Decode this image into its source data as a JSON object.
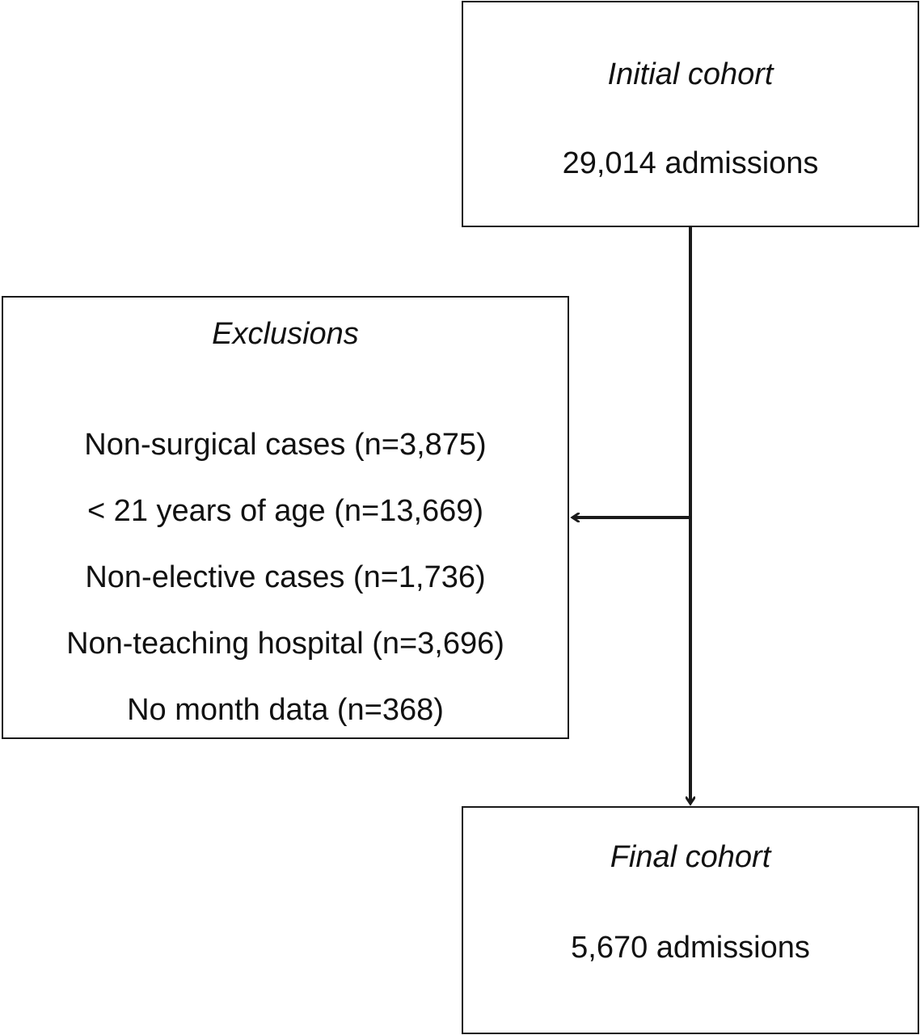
{
  "initial_cohort": {
    "title": "Initial cohort",
    "count": "29,014 admissions"
  },
  "exclusions": {
    "title": "Exclusions",
    "items": [
      "Non-surgical cases (n=3,875)",
      "< 21 years of age (n=13,669)",
      "Non-elective cases (n=1,736)",
      "Non-teaching hospital (n=3,696)",
      "No month data (n=368)"
    ]
  },
  "final_cohort": {
    "title": "Final cohort",
    "count": "5,670 admissions"
  },
  "colors": {
    "stroke": "#1a1a1a",
    "background": "#ffffff"
  }
}
